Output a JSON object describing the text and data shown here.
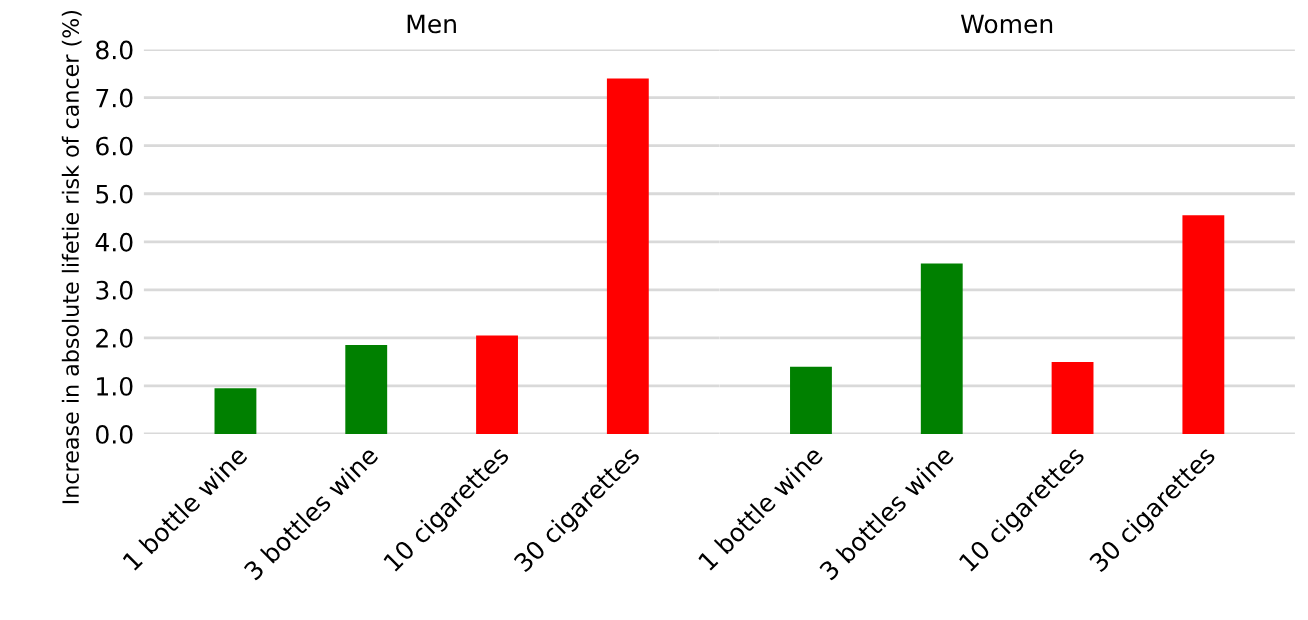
{
  "chart_data": [
    {
      "type": "bar",
      "title": "Men",
      "ylabel": "Increase in absolute lifetie risk of cancer (%)",
      "categories": [
        "1 bottle wine",
        "3 bottles wine",
        "10 cigarettes",
        "30 cigarettes"
      ],
      "values": [
        0.95,
        1.85,
        2.05,
        7.4
      ],
      "colors": [
        "#008000",
        "#008000",
        "#ff0000",
        "#ff0000"
      ],
      "ylim": [
        0,
        8
      ],
      "yticks": [
        {
          "value": 0,
          "label": "0.0"
        },
        {
          "value": 1,
          "label": "1.0"
        },
        {
          "value": 2,
          "label": "2.0"
        },
        {
          "value": 3,
          "label": "3.0"
        },
        {
          "value": 4,
          "label": "4.0"
        },
        {
          "value": 5,
          "label": "5.0"
        },
        {
          "value": 6,
          "label": "6.0"
        },
        {
          "value": 7,
          "label": "7.0"
        },
        {
          "value": 8,
          "label": "8.0"
        }
      ],
      "grid": "y"
    },
    {
      "type": "bar",
      "title": "Women",
      "categories": [
        "1 bottle wine",
        "3 bottles wine",
        "10 cigarettes",
        "30 cigarettes"
      ],
      "values": [
        1.4,
        3.55,
        1.5,
        4.55
      ],
      "colors": [
        "#008000",
        "#008000",
        "#ff0000",
        "#ff0000"
      ],
      "ylim": [
        0,
        8
      ],
      "yticks": [
        {
          "value": 0,
          "label": null
        },
        {
          "value": 1,
          "label": null
        },
        {
          "value": 2,
          "label": null
        },
        {
          "value": 3,
          "label": null
        },
        {
          "value": 4,
          "label": null
        },
        {
          "value": 5,
          "label": null
        },
        {
          "value": 6,
          "label": null
        },
        {
          "value": 7,
          "label": null
        },
        {
          "value": 8,
          "label": null
        }
      ],
      "grid": "y",
      "tick_labels": "x"
    }
  ]
}
